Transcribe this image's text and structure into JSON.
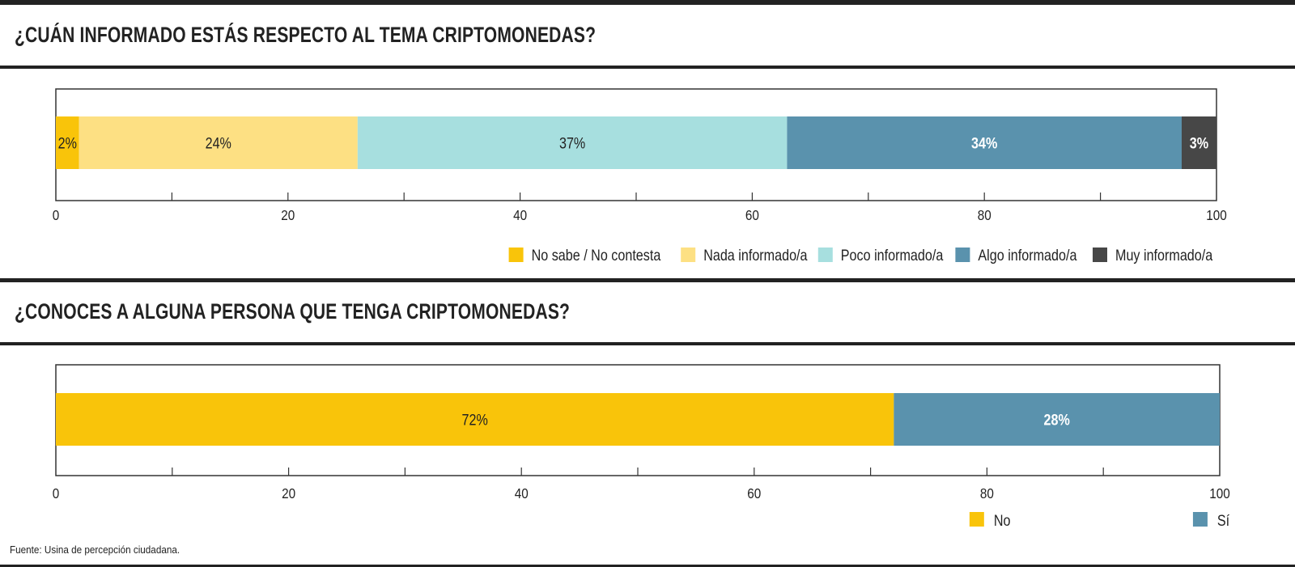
{
  "chart_data": [
    {
      "type": "bar",
      "orientation": "horizontal",
      "stacked": true,
      "title": "¿CUÁN INFORMADO ESTÁS RESPECTO AL TEMA CRIPTOMONEDAS?",
      "xlim": [
        0,
        100
      ],
      "xticks": [
        "0",
        "20",
        "40",
        "60",
        "80",
        "100"
      ],
      "series": [
        {
          "name": "No sabe / No contesta",
          "value": 2,
          "label": "2%",
          "color": "#f9c40a",
          "text_color": "#222222",
          "bold": false
        },
        {
          "name": "Nada informado/a",
          "value": 24,
          "label": "24%",
          "color": "#fde083",
          "text_color": "#222222",
          "bold": false
        },
        {
          "name": "Poco informado/a",
          "value": 37,
          "label": "37%",
          "color": "#a7dfdf",
          "text_color": "#222222",
          "bold": false
        },
        {
          "name": "Algo informado/a",
          "value": 34,
          "label": "34%",
          "color": "#5a92ad",
          "text_color": "#ffffff",
          "bold": true
        },
        {
          "name": "Muy informado/a",
          "value": 3,
          "label": "3%",
          "color": "#474747",
          "text_color": "#ffffff",
          "bold": true
        }
      ],
      "legend_position": "bottom-right"
    },
    {
      "type": "bar",
      "orientation": "horizontal",
      "stacked": true,
      "title": "¿CONOCES A ALGUNA PERSONA QUE TENGA CRIPTOMONEDAS?",
      "xlim": [
        0,
        100
      ],
      "xticks": [
        "0",
        "20",
        "40",
        "60",
        "80",
        "100"
      ],
      "series": [
        {
          "name": "No",
          "value": 72,
          "label": "72%",
          "color": "#f9c40a",
          "text_color": "#222222",
          "bold": false
        },
        {
          "name": "Sí",
          "value": 28,
          "label": "28%",
          "color": "#5a92ad",
          "text_color": "#ffffff",
          "bold": true
        }
      ],
      "legend_position": "bottom-right"
    }
  ],
  "source": "Fuente: Usina de percepción ciudadana."
}
